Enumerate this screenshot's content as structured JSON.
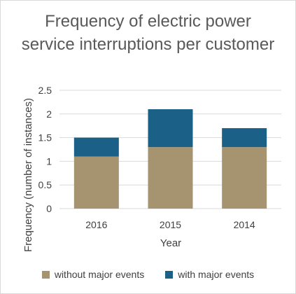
{
  "chart_data": {
    "type": "bar",
    "stacked": true,
    "title": "Frequency of electric power service interruptions per customer",
    "xlabel": "Year",
    "ylabel": "Frequency (number of instances)",
    "categories": [
      "2016",
      "2015",
      "2014"
    ],
    "series": [
      {
        "name": "without major events",
        "values": [
          1.1,
          1.3,
          1.3
        ],
        "color": "#a69470"
      },
      {
        "name": "with major events",
        "values": [
          0.4,
          0.8,
          0.4
        ],
        "color": "#1b6187"
      }
    ],
    "ylim": [
      0,
      2.5
    ],
    "yticks": [
      "0",
      "0.5",
      "1",
      "1.5",
      "2",
      "2.5"
    ],
    "grid": true,
    "legend_position": "bottom",
    "gridline_color": "#d9d9d9"
  }
}
